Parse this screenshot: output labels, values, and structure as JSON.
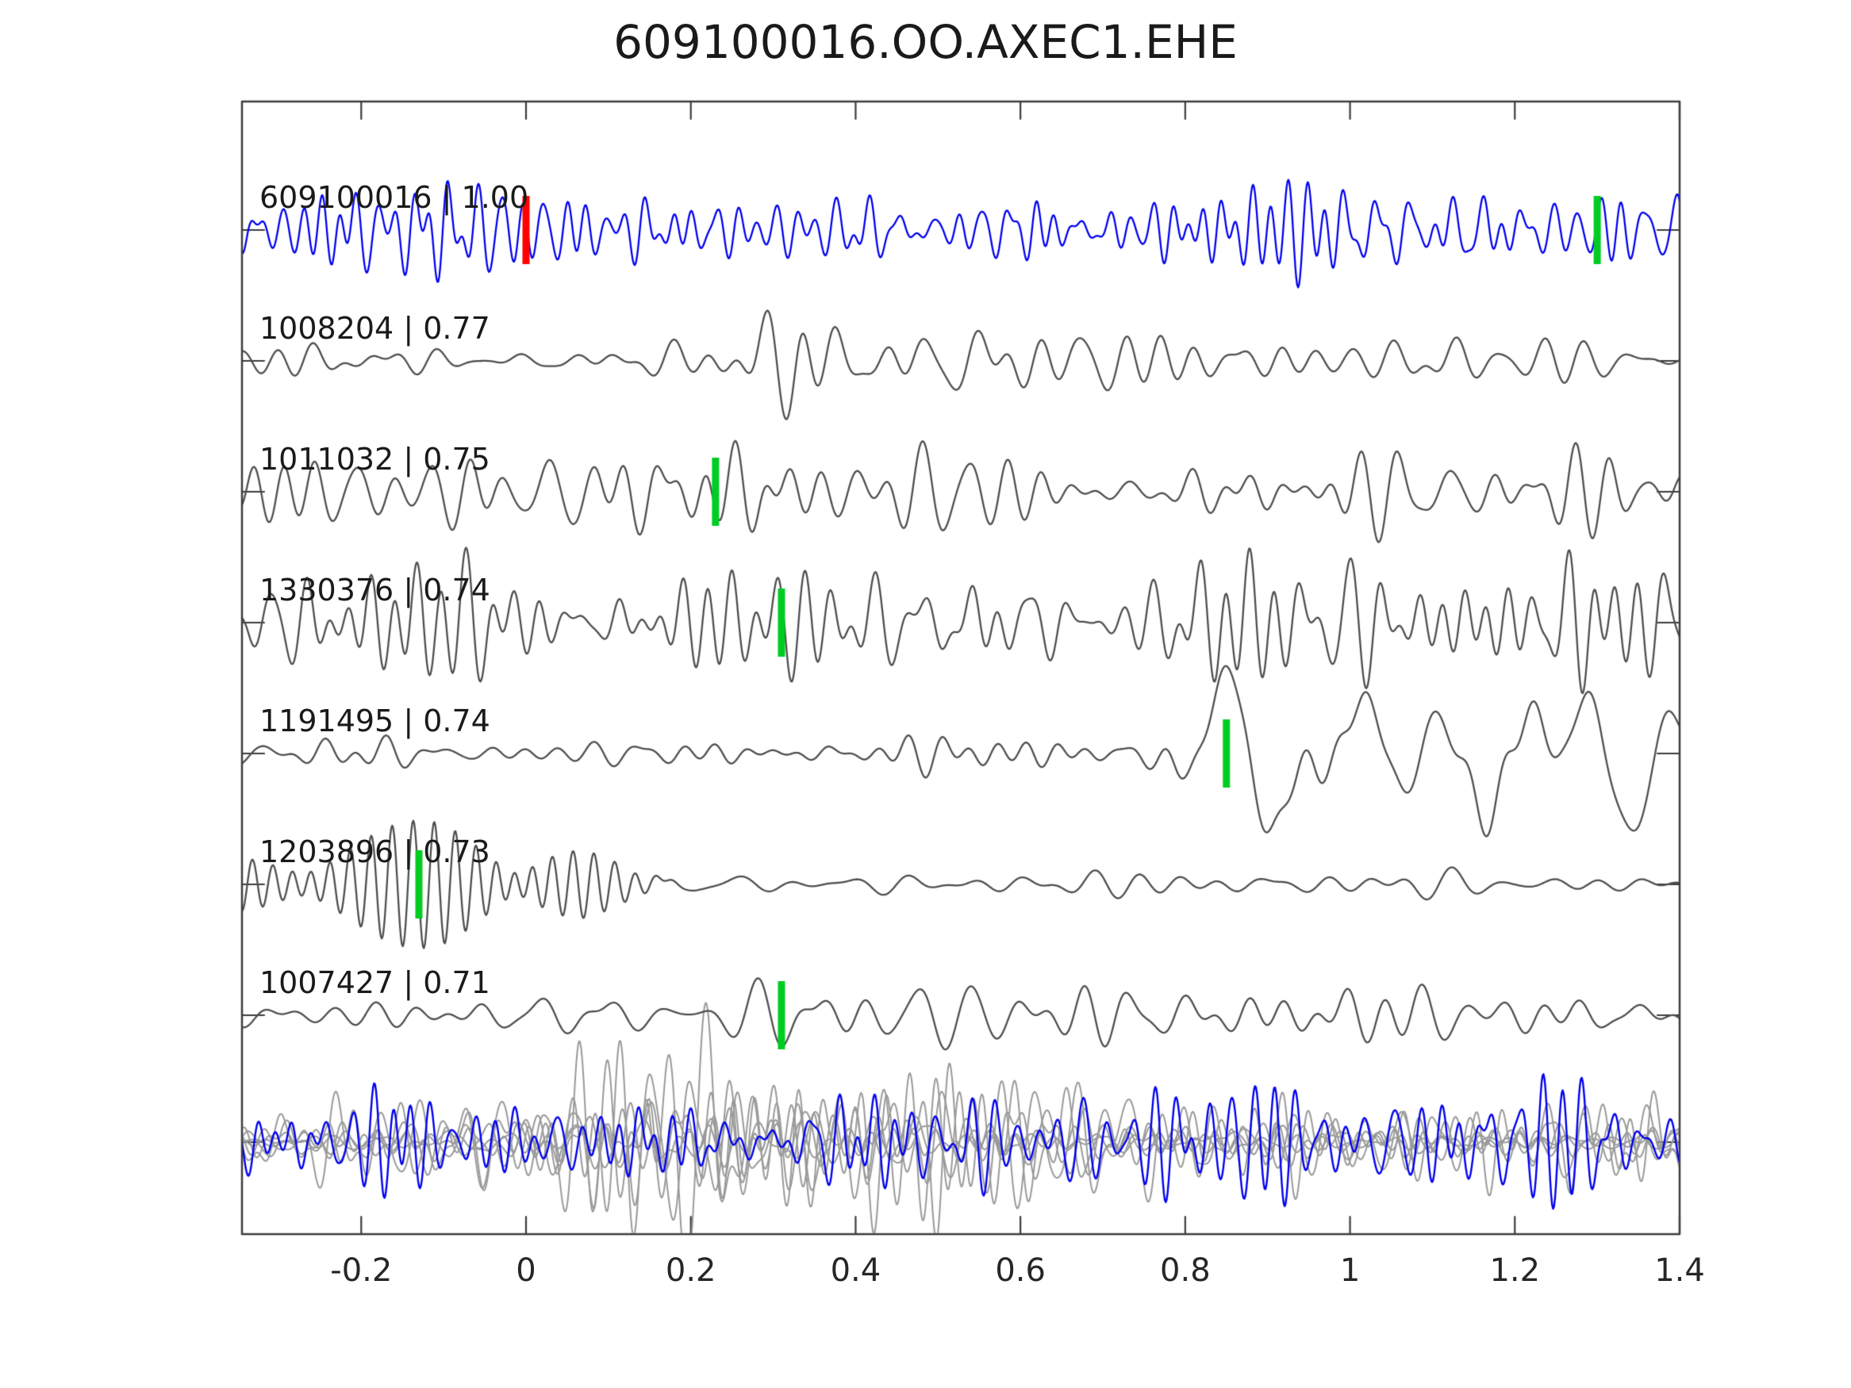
{
  "chart_data": {
    "type": "line",
    "title": "609100016.OO.AXEC1.EHE",
    "xlabel": "",
    "ylabel": "",
    "grid": false,
    "legend": "none",
    "x_range": [
      -0.345,
      1.4
    ],
    "x_ticks": [
      -0.2,
      0,
      0.2,
      0.4,
      0.6,
      0.8,
      1,
      1.2,
      1.4
    ],
    "x_tick_labels": [
      "-0.2",
      "0",
      "0.2",
      "0.4",
      "0.6",
      "0.8",
      "1",
      "1.2",
      "1.4"
    ],
    "colors": {
      "target_trace": "#0000ee",
      "match_trace": "#4d4d4d",
      "overlay_gray": "#999999",
      "overlay_blue": "#0000ee",
      "marker_green": "#00cc22",
      "marker_red": "#ff0000",
      "axis": "#3c3c3c",
      "text": "#1a1a1a"
    },
    "traces": [
      {
        "event_id": "609100016",
        "score": "1.00",
        "label": "609100016 | 1.00",
        "color": "#0000ee",
        "markers": [
          {
            "x": 0.0,
            "color": "#ff0000"
          },
          {
            "x": 1.3,
            "color": "#00cc22"
          }
        ],
        "components": [
          {
            "seed": 101,
            "fmin": 20,
            "fmax": 55,
            "n_osc": 60,
            "envelope": [
              [
                -0.35,
                42
              ],
              [
                1.15,
                42
              ],
              [
                1.25,
                48
              ],
              [
                1.32,
                62
              ],
              [
                1.4,
                50
              ]
            ]
          }
        ]
      },
      {
        "event_id": "1008204",
        "score": "0.77",
        "label": "1008204 | 0.77",
        "color": "#4d4d4d",
        "markers": [],
        "components": [
          {
            "seed": 202,
            "fmin": 8,
            "fmax": 28,
            "n_osc": 42,
            "envelope": [
              [
                -0.35,
                16
              ],
              [
                0.2,
                18
              ],
              [
                0.27,
                34
              ],
              [
                0.33,
                62
              ],
              [
                0.42,
                50
              ],
              [
                0.55,
                34
              ],
              [
                0.8,
                28
              ],
              [
                1.1,
                26
              ],
              [
                1.4,
                22
              ]
            ]
          }
        ]
      },
      {
        "event_id": "1011032",
        "score": "0.75",
        "label": "1011032 | 0.75",
        "color": "#4d4d4d",
        "markers": [
          {
            "x": 0.23,
            "color": "#00cc22"
          }
        ],
        "components": [
          {
            "seed": 303,
            "fmin": 10,
            "fmax": 32,
            "n_osc": 50,
            "envelope": [
              [
                -0.35,
                40
              ],
              [
                0.15,
                46
              ],
              [
                0.3,
                56
              ],
              [
                0.5,
                48
              ],
              [
                0.8,
                42
              ],
              [
                1.1,
                42
              ],
              [
                1.4,
                46
              ]
            ]
          }
        ]
      },
      {
        "event_id": "1330376",
        "score": "0.74",
        "label": "1330376 | 0.74",
        "color": "#4d4d4d",
        "markers": [
          {
            "x": 0.31,
            "color": "#00cc22"
          }
        ],
        "components": [
          {
            "seed": 404,
            "fmin": 14,
            "fmax": 40,
            "n_osc": 55,
            "envelope": [
              [
                -0.35,
                52
              ],
              [
                0.2,
                56
              ],
              [
                0.5,
                62
              ],
              [
                0.9,
                54
              ],
              [
                1.2,
                58
              ],
              [
                1.4,
                54
              ]
            ]
          }
        ]
      },
      {
        "event_id": "1191495",
        "score": "0.74",
        "label": "1191495 | 0.74",
        "color": "#4d4d4d",
        "markers": [
          {
            "x": 0.85,
            "color": "#00cc22"
          }
        ],
        "components": [
          {
            "seed": 505,
            "fmin": 12,
            "fmax": 30,
            "n_osc": 45,
            "envelope": [
              [
                -0.35,
                16
              ],
              [
                0.72,
                16
              ],
              [
                0.8,
                22
              ],
              [
                1.4,
                18
              ]
            ]
          },
          {
            "seed": 506,
            "fmin": 4,
            "fmax": 12,
            "n_osc": 20,
            "envelope": [
              [
                0.72,
                0
              ],
              [
                0.8,
                30
              ],
              [
                0.88,
                62
              ],
              [
                1.0,
                50
              ],
              [
                1.2,
                46
              ],
              [
                1.35,
                40
              ],
              [
                1.4,
                34
              ]
            ]
          }
        ]
      },
      {
        "event_id": "1203896",
        "score": "0.73",
        "label": "1203896 | 0.73",
        "color": "#4d4d4d",
        "markers": [
          {
            "x": -0.13,
            "color": "#00cc22"
          }
        ],
        "components": [
          {
            "seed": 606,
            "fmin": 36,
            "fmax": 41,
            "n_osc": 10,
            "envelope": [
              [
                -0.35,
                28
              ],
              [
                -0.22,
                50
              ],
              [
                -0.1,
                72
              ],
              [
                0.0,
                80
              ],
              [
                0.07,
                62
              ],
              [
                0.14,
                24
              ],
              [
                0.18,
                4
              ],
              [
                0.2,
                0
              ]
            ]
          },
          {
            "seed": 607,
            "fmin": 8,
            "fmax": 22,
            "n_osc": 35,
            "envelope": [
              [
                0.1,
                0
              ],
              [
                0.18,
                10
              ],
              [
                0.5,
                12
              ],
              [
                0.9,
                10
              ],
              [
                1.4,
                11
              ]
            ]
          }
        ]
      },
      {
        "event_id": "1007427",
        "score": "0.71",
        "label": "1007427 | 0.71",
        "color": "#4d4d4d",
        "markers": [
          {
            "x": 0.31,
            "color": "#00cc22"
          }
        ],
        "components": [
          {
            "seed": 707,
            "fmin": 9,
            "fmax": 26,
            "n_osc": 40,
            "envelope": [
              [
                -0.35,
                14
              ],
              [
                0.2,
                18
              ],
              [
                0.3,
                36
              ],
              [
                0.38,
                48
              ],
              [
                0.45,
                52
              ],
              [
                0.55,
                32
              ],
              [
                0.75,
                26
              ],
              [
                1.0,
                24
              ],
              [
                1.4,
                18
              ]
            ]
          }
        ]
      }
    ],
    "overlay_row": {
      "description": "all matched traces overplotted in gray with target trace in blue",
      "gray_traces": {
        "seeds": [
          901,
          902,
          903,
          904,
          905,
          906
        ],
        "amp_factors": [
          1.0,
          0.8,
          0.55,
          0.4,
          0.3,
          0.22
        ],
        "fmin": 12,
        "fmax": 42,
        "n_osc": 45,
        "envelope": [
          [
            -0.35,
            30
          ],
          [
            -0.2,
            50
          ],
          [
            -0.05,
            85
          ],
          [
            0.15,
            115
          ],
          [
            0.35,
            118
          ],
          [
            0.5,
            105
          ],
          [
            0.62,
            80
          ],
          [
            0.75,
            60
          ],
          [
            0.9,
            55
          ],
          [
            1.1,
            45
          ],
          [
            1.25,
            45
          ],
          [
            1.4,
            60
          ]
        ]
      },
      "blue_trace": {
        "seed": 910,
        "fmin": 18,
        "fmax": 50,
        "n_osc": 55,
        "envelope": [
          [
            -0.35,
            48
          ],
          [
            0.2,
            55
          ],
          [
            0.5,
            52
          ],
          [
            0.8,
            60
          ],
          [
            1.0,
            58
          ],
          [
            1.25,
            65
          ],
          [
            1.33,
            75
          ],
          [
            1.4,
            60
          ]
        ]
      }
    }
  }
}
